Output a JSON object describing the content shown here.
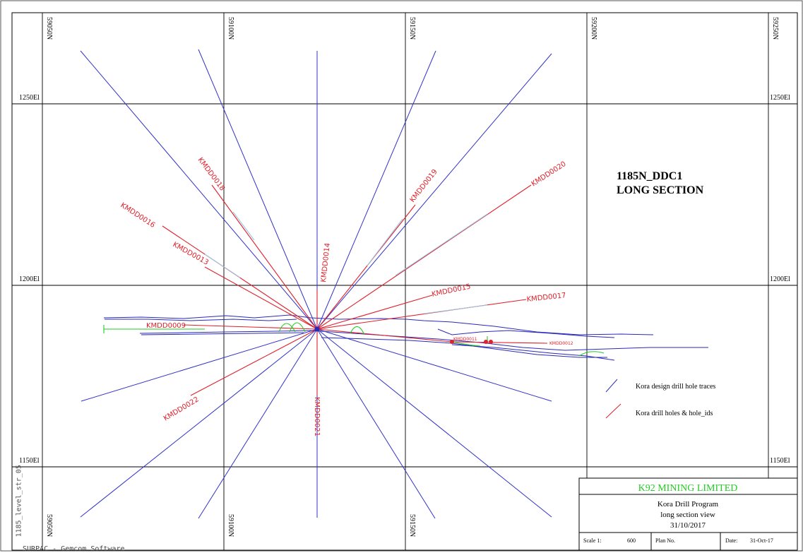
{
  "title": {
    "line1": "1185N_DDC1",
    "line2": "LONG SECTION"
  },
  "northings": [
    "59050N",
    "59100N",
    "59150N",
    "59200N",
    "59250N"
  ],
  "elevations": [
    "1250El",
    "1200El",
    "1150El"
  ],
  "drill_hole_labels": {
    "kmdd0018": "KMDD0018",
    "kmdd0016": "KMDD0016",
    "kmdd0013": "KMDD0013",
    "kmdd0014": "KMDD0014",
    "kmdd0019": "KMDD0019",
    "kmdd0020": "KMDD0020",
    "kmdd0015": "KMDD0015",
    "kmdd0017": "KMDD0017",
    "kmdd0009": "KMDD0009",
    "kmdd0022": "KMDD0022",
    "kmdd0021": "KMDD0021",
    "kmdd0011": "KMDD0011",
    "kmdd0012": "KMDD0012"
  },
  "legend": {
    "design_traces": "Kora design drill hole traces",
    "drill_holes": "Kora drill holes & hole_ids"
  },
  "title_block": {
    "company": "K92 MINING LIMITED",
    "program": "Kora Drill Program",
    "view": "long section view",
    "date_line": "31/10/2017",
    "scale_label": "Scale 1:",
    "scale_value": "600",
    "plan_label": "Plan No.",
    "date_label": "Date:",
    "date_value": "31-Oct-17"
  },
  "side_text": "1185_level_str_05",
  "footer_text": "SURPAC - Gemcom Software",
  "colors": {
    "design": "#3232c8",
    "actual": "#e0202a",
    "drive": "#2a2ab8",
    "green": "#22cc22",
    "grid": "#000000",
    "company": "#22cc22"
  }
}
